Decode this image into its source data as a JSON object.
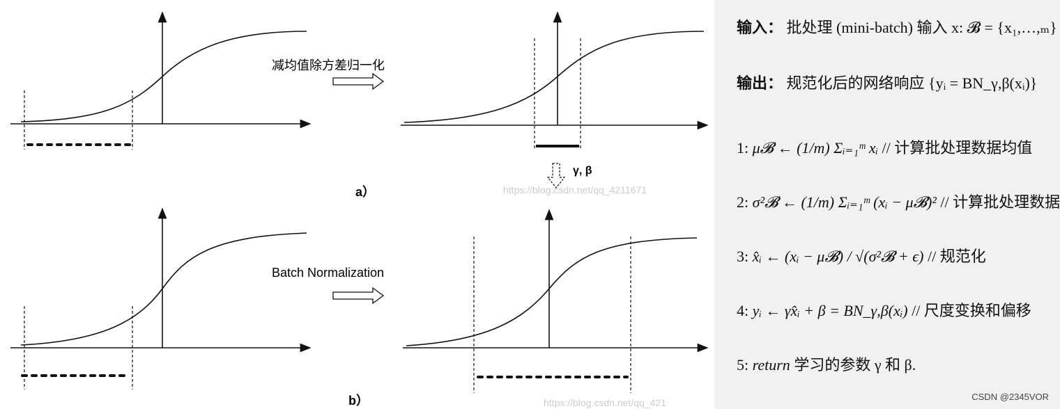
{
  "figure": {
    "label_top": "减均值除方差归一化",
    "label_params": "γ, β",
    "caption_a": "a）",
    "label_bottom": "Batch Normalization",
    "caption_b": "b）",
    "watermark_a": "https://blog.csdn.net/qq_4211671",
    "watermark_b": "https://blog.csdn.net/qq_421"
  },
  "algorithm": {
    "input_label": "输入：",
    "input_text": "批处理 (mini-batch) 输入 x: 𝓑 = {x₁,…,ₘ}",
    "output_label": "输出：",
    "output_text": "规范化后的网络响应 {yᵢ = BN_γ,β(xᵢ)}",
    "steps": [
      {
        "num": "1:",
        "math": "μ𝓑 ← (1/m) Σᵢ₌₁ᵐ xᵢ",
        "comment": "// 计算批处理数据均值"
      },
      {
        "num": "2:",
        "math": "σ²𝓑 ← (1/m) Σᵢ₌₁ᵐ (xᵢ − μ𝓑)²",
        "comment": "// 计算批处理数据方差"
      },
      {
        "num": "3:",
        "math": "x̂ᵢ ← (xᵢ − μ𝓑) / √(σ²𝓑 + ϵ)",
        "comment": "// 规范化"
      },
      {
        "num": "4:",
        "math": "yᵢ ← γx̂ᵢ + β = BN_γ,β(xᵢ)",
        "comment": "// 尺度变换和偏移"
      },
      {
        "num": "5:",
        "math": "return",
        "comment": "学习的参数 γ 和 β."
      }
    ]
  },
  "footer": {
    "credit": "CSDN @2345VOR"
  }
}
